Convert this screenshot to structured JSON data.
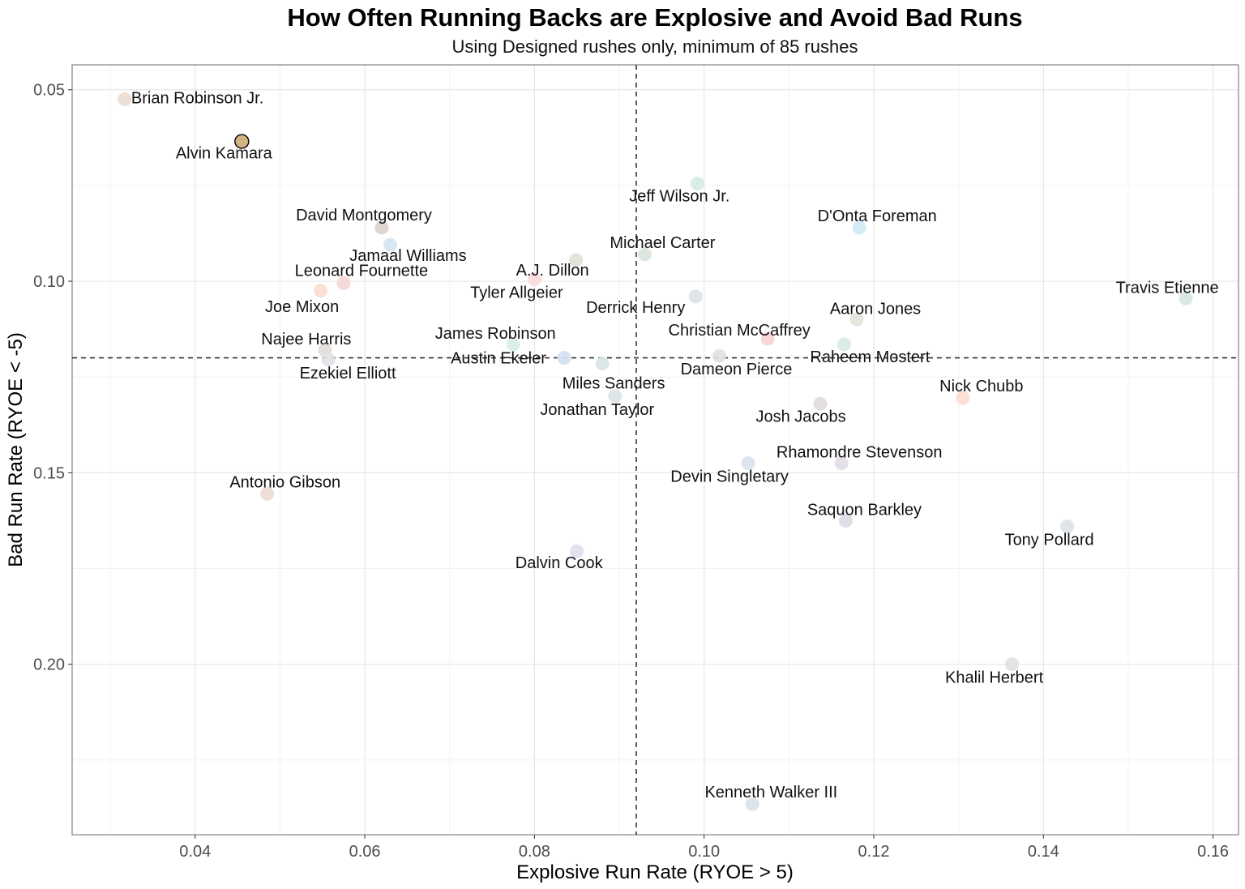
{
  "chart_data": {
    "type": "scatter",
    "title": "How Often Running Backs are Explosive and Avoid Bad Runs",
    "subtitle": "Using Designed rushes only, minimum of 85 rushes",
    "xlabel": "Explosive Run Rate (RYOE > 5)",
    "ylabel": "Bad Run Rate (RYOE < -5)",
    "xlim": [
      0.0255,
      0.163
    ],
    "ylim": [
      0.0435,
      0.2445
    ],
    "y_reversed": true,
    "x_ticks": [
      0.04,
      0.06,
      0.08,
      0.1,
      0.12,
      0.14,
      0.16
    ],
    "x_tick_labels": [
      "0.04",
      "0.06",
      "0.08",
      "0.10",
      "0.12",
      "0.14",
      "0.16"
    ],
    "y_ticks": [
      0.05,
      0.1,
      0.15,
      0.2
    ],
    "y_tick_labels": [
      "0.05",
      "0.10",
      "0.15",
      "0.20"
    ],
    "grid": true,
    "reference_lines": {
      "x_mean": 0.092,
      "y_mean": 0.12
    },
    "points": [
      {
        "name": "Brian Robinson Jr.",
        "x": 0.0317,
        "y": 0.0525,
        "color": "#ecdcd2"
      },
      {
        "name": "Alvin Kamara",
        "x": 0.0455,
        "y": 0.0635,
        "color": "#d2b483",
        "highlight": true
      },
      {
        "name": "David Montgomery",
        "x": 0.062,
        "y": 0.086,
        "color": "#dcd2cd"
      },
      {
        "name": "Jamaal Williams",
        "x": 0.063,
        "y": 0.0905,
        "color": "#d3e6f2"
      },
      {
        "name": "Leonard Fournette",
        "x": 0.0575,
        "y": 0.1005,
        "color": "#f5d6d6"
      },
      {
        "name": "Joe Mixon",
        "x": 0.0548,
        "y": 0.1025,
        "color": "#fbdcd2"
      },
      {
        "name": "Najee Harris",
        "x": 0.0553,
        "y": 0.118,
        "color": "#e1dcd7"
      },
      {
        "name": "Ezekiel Elliott",
        "x": 0.0557,
        "y": 0.1205,
        "color": "#e1e1e6"
      },
      {
        "name": "Antonio Gibson",
        "x": 0.0485,
        "y": 0.1555,
        "color": "#ebdcd2"
      },
      {
        "name": "A.J. Dillon",
        "x": 0.0849,
        "y": 0.0945,
        "color": "#e1e1dc"
      },
      {
        "name": "Tyler Allgeier",
        "x": 0.08,
        "y": 0.0995,
        "color": "#fbdcdc"
      },
      {
        "name": "James Robinson",
        "x": 0.0775,
        "y": 0.1165,
        "color": "#d7ede6"
      },
      {
        "name": "Austin Ekeler",
        "x": 0.0835,
        "y": 0.12,
        "color": "#d2e1f0"
      },
      {
        "name": "Miles Sanders",
        "x": 0.088,
        "y": 0.1215,
        "color": "#d8e6e6"
      },
      {
        "name": "Jonathan Taylor",
        "x": 0.0895,
        "y": 0.13,
        "color": "#dce3e6"
      },
      {
        "name": "Dalvin Cook",
        "x": 0.085,
        "y": 0.1705,
        "color": "#e3dced"
      },
      {
        "name": "Jeff Wilson Jr.",
        "x": 0.0992,
        "y": 0.0745,
        "color": "#d4ebe6"
      },
      {
        "name": "Michael Carter",
        "x": 0.093,
        "y": 0.093,
        "color": "#d9e3dc"
      },
      {
        "name": "Derrick Henry",
        "x": 0.099,
        "y": 0.104,
        "color": "#dce1e6"
      },
      {
        "name": "Christian McCaffrey",
        "x": 0.1075,
        "y": 0.115,
        "color": "#fbd2d2"
      },
      {
        "name": "Dameon Pierce",
        "x": 0.1018,
        "y": 0.1195,
        "color": "#e1e1e1"
      },
      {
        "name": "D'Onta Foreman",
        "x": 0.1183,
        "y": 0.086,
        "color": "#d2e8f5"
      },
      {
        "name": "Aaron Jones",
        "x": 0.118,
        "y": 0.11,
        "color": "#e3e3dc"
      },
      {
        "name": "Raheem Mostert",
        "x": 0.1165,
        "y": 0.1165,
        "color": "#d5eae6"
      },
      {
        "name": "Josh Jacobs",
        "x": 0.1137,
        "y": 0.132,
        "color": "#e1dcdc"
      },
      {
        "name": "Rhamondre Stevenson",
        "x": 0.1162,
        "y": 0.1475,
        "color": "#e1dce6"
      },
      {
        "name": "Devin Singletary",
        "x": 0.1052,
        "y": 0.1475,
        "color": "#dce1f0"
      },
      {
        "name": "Saquon Barkley",
        "x": 0.1167,
        "y": 0.1625,
        "color": "#dcdce6"
      },
      {
        "name": "Nick Chubb",
        "x": 0.1305,
        "y": 0.1305,
        "color": "#fcdcd0"
      },
      {
        "name": "Travis Etienne",
        "x": 0.1568,
        "y": 0.1045,
        "color": "#d6e6e3"
      },
      {
        "name": "Tony Pollard",
        "x": 0.1428,
        "y": 0.164,
        "color": "#dce1e6"
      },
      {
        "name": "Khalil Herbert",
        "x": 0.1363,
        "y": 0.2,
        "color": "#e1e1e1"
      },
      {
        "name": "Kenneth Walker III",
        "x": 0.1057,
        "y": 0.2365,
        "color": "#dce1e6"
      }
    ]
  }
}
